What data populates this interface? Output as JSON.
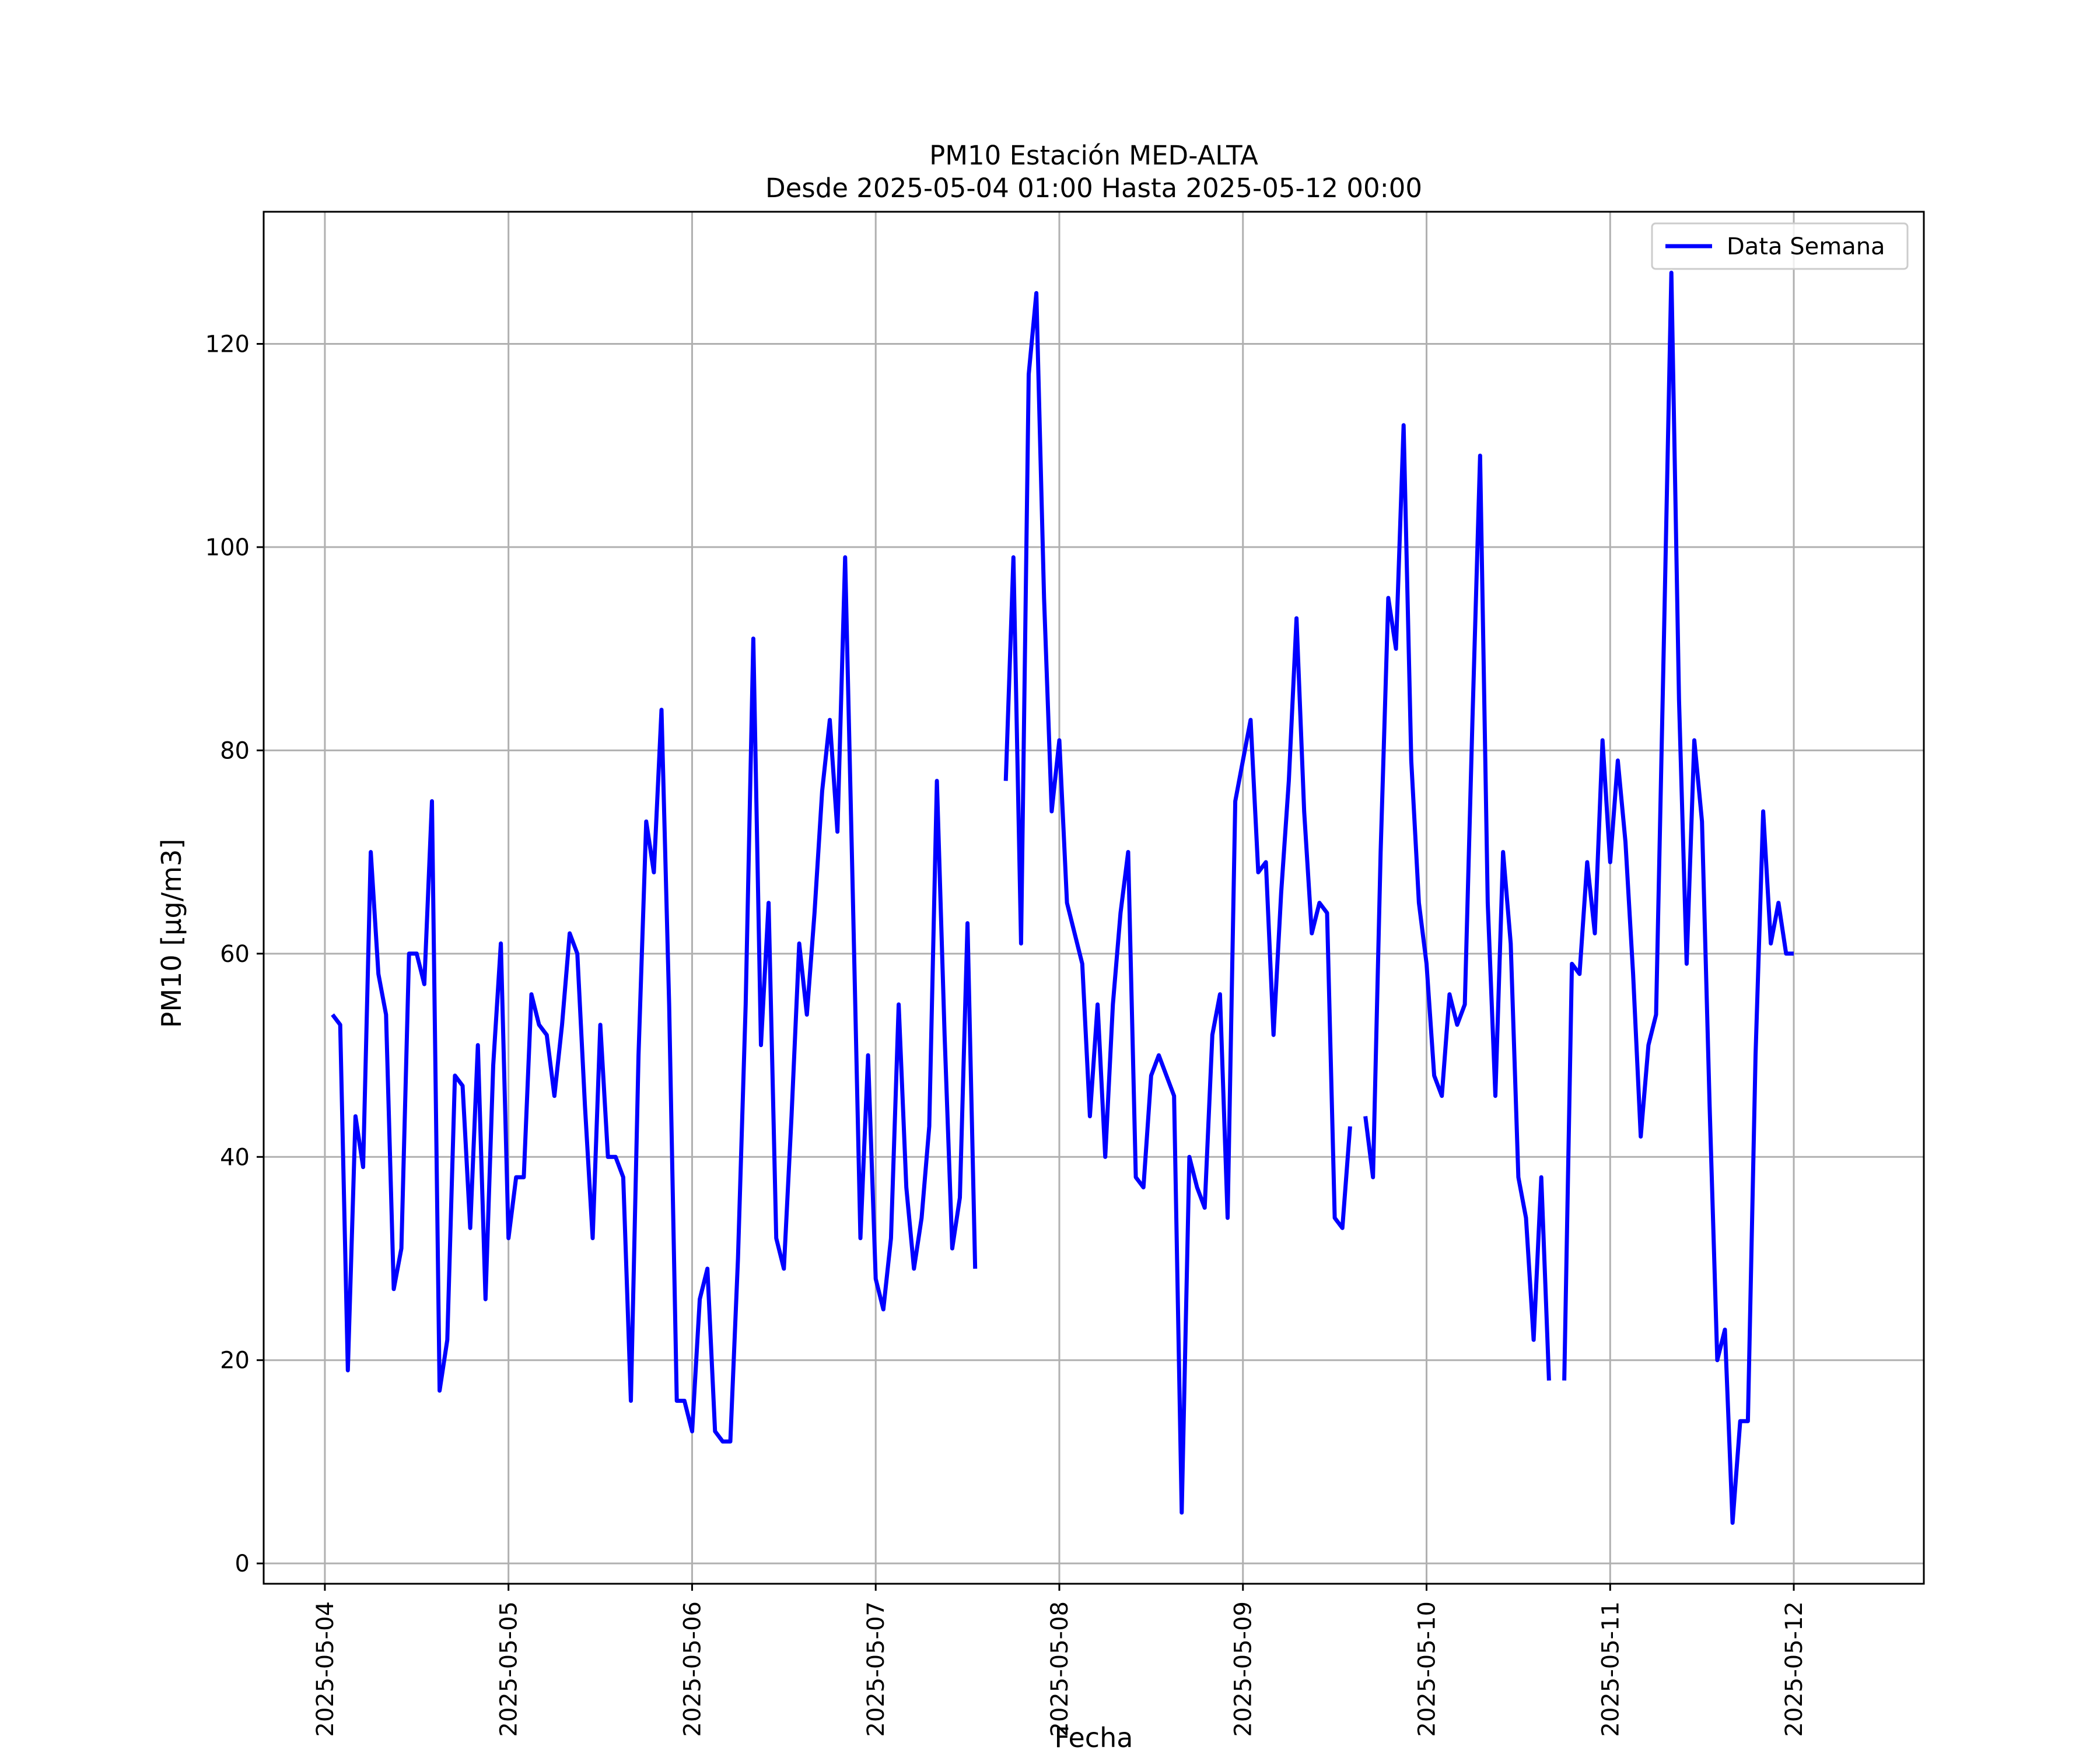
{
  "chart_data": {
    "type": "line",
    "title_line1": "PM10 Estación MED-ALTA",
    "title_line2": "Desde 2025-05-04 01:00 Hasta 2025-05-12 00:00",
    "xlabel": "Fecha",
    "ylabel": "PM10 [μg/m3]",
    "x_ticks": [
      "2025-05-04",
      "2025-05-05",
      "2025-05-06",
      "2025-05-07",
      "2025-05-08",
      "2025-05-09",
      "2025-05-10",
      "2025-05-11",
      "2025-05-12"
    ],
    "y_ticks": [
      0,
      20,
      40,
      60,
      80,
      100,
      120
    ],
    "xlim": [
      "2025-05-03T16:00",
      "2025-05-12T17:00"
    ],
    "ylim": [
      -2,
      133
    ],
    "grid": true,
    "legend_position": "top-right",
    "colors": {
      "series": "#0000ff",
      "grid": "#b0b0b0"
    },
    "series": [
      {
        "name": "Data Semana",
        "color": "#0000ff",
        "points": [
          [
            "2025-05-04T01:00",
            54
          ],
          [
            "2025-05-04T02:00",
            53
          ],
          [
            "2025-05-04T03:00",
            19
          ],
          [
            "2025-05-04T04:00",
            44
          ],
          [
            "2025-05-04T05:00",
            39
          ],
          [
            "2025-05-04T06:00",
            70
          ],
          [
            "2025-05-04T07:00",
            58
          ],
          [
            "2025-05-04T08:00",
            54
          ],
          [
            "2025-05-04T09:00",
            27
          ],
          [
            "2025-05-04T10:00",
            31
          ],
          [
            "2025-05-04T11:00",
            60
          ],
          [
            "2025-05-04T12:00",
            60
          ],
          [
            "2025-05-04T13:00",
            57
          ],
          [
            "2025-05-04T14:00",
            75
          ],
          [
            "2025-05-04T15:00",
            17
          ],
          [
            "2025-05-04T16:00",
            22
          ],
          [
            "2025-05-04T17:00",
            48
          ],
          [
            "2025-05-04T18:00",
            47
          ],
          [
            "2025-05-04T19:00",
            33
          ],
          [
            "2025-05-04T20:00",
            51
          ],
          [
            "2025-05-04T21:00",
            26
          ],
          [
            "2025-05-04T22:00",
            49
          ],
          [
            "2025-05-04T23:00",
            61
          ],
          [
            "2025-05-05T00:00",
            32
          ],
          [
            "2025-05-05T01:00",
            38
          ],
          [
            "2025-05-05T02:00",
            38
          ],
          [
            "2025-05-05T03:00",
            56
          ],
          [
            "2025-05-05T04:00",
            53
          ],
          [
            "2025-05-05T05:00",
            52
          ],
          [
            "2025-05-05T06:00",
            46
          ],
          [
            "2025-05-05T07:00",
            53
          ],
          [
            "2025-05-05T08:00",
            62
          ],
          [
            "2025-05-05T09:00",
            60
          ],
          [
            "2025-05-05T10:00",
            45
          ],
          [
            "2025-05-05T11:00",
            32
          ],
          [
            "2025-05-05T12:00",
            53
          ],
          [
            "2025-05-05T13:00",
            40
          ],
          [
            "2025-05-05T14:00",
            40
          ],
          [
            "2025-05-05T15:00",
            38
          ],
          [
            "2025-05-05T16:00",
            16
          ],
          [
            "2025-05-05T17:00",
            50
          ],
          [
            "2025-05-05T18:00",
            73
          ],
          [
            "2025-05-05T19:00",
            68
          ],
          [
            "2025-05-05T20:00",
            84
          ],
          [
            "2025-05-05T21:00",
            55
          ],
          [
            "2025-05-05T22:00",
            16
          ],
          [
            "2025-05-05T23:00",
            16
          ],
          [
            "2025-05-06T00:00",
            13
          ],
          [
            "2025-05-06T01:00",
            26
          ],
          [
            "2025-05-06T02:00",
            29
          ],
          [
            "2025-05-06T03:00",
            13
          ],
          [
            "2025-05-06T04:00",
            12
          ],
          [
            "2025-05-06T05:00",
            12
          ],
          [
            "2025-05-06T06:00",
            30
          ],
          [
            "2025-05-06T07:00",
            55
          ],
          [
            "2025-05-06T08:00",
            91
          ],
          [
            "2025-05-06T09:00",
            51
          ],
          [
            "2025-05-06T10:00",
            65
          ],
          [
            "2025-05-06T11:00",
            32
          ],
          [
            "2025-05-06T12:00",
            29
          ],
          [
            "2025-05-06T13:00",
            44
          ],
          [
            "2025-05-06T14:00",
            61
          ],
          [
            "2025-05-06T15:00",
            54
          ],
          [
            "2025-05-06T16:00",
            64
          ],
          [
            "2025-05-06T17:00",
            76
          ],
          [
            "2025-05-06T18:00",
            83
          ],
          [
            "2025-05-06T19:00",
            72
          ],
          [
            "2025-05-06T20:00",
            99
          ],
          [
            "2025-05-06T21:00",
            66
          ],
          [
            "2025-05-06T22:00",
            32
          ],
          [
            "2025-05-06T23:00",
            50
          ],
          [
            "2025-05-07T00:00",
            28
          ],
          [
            "2025-05-07T01:00",
            25
          ],
          [
            "2025-05-07T02:00",
            32
          ],
          [
            "2025-05-07T03:00",
            55
          ],
          [
            "2025-05-07T04:00",
            37
          ],
          [
            "2025-05-07T05:00",
            29
          ],
          [
            "2025-05-07T06:00",
            34
          ],
          [
            "2025-05-07T07:00",
            43
          ],
          [
            "2025-05-07T08:00",
            77
          ],
          [
            "2025-05-07T09:00",
            52
          ],
          [
            "2025-05-07T10:00",
            31
          ],
          [
            "2025-05-07T11:00",
            36
          ],
          [
            "2025-05-07T12:00",
            63
          ],
          [
            "2025-05-07T13:00",
            29
          ],
          [
            "2025-05-07T17:00",
            77
          ],
          [
            "2025-05-07T18:00",
            99
          ],
          [
            "2025-05-07T19:00",
            61
          ],
          [
            "2025-05-07T20:00",
            117
          ],
          [
            "2025-05-07T21:00",
            125
          ],
          [
            "2025-05-07T22:00",
            95
          ],
          [
            "2025-05-07T23:00",
            74
          ],
          [
            "2025-05-08T00:00",
            81
          ],
          [
            "2025-05-08T01:00",
            65
          ],
          [
            "2025-05-08T02:00",
            62
          ],
          [
            "2025-05-08T03:00",
            59
          ],
          [
            "2025-05-08T04:00",
            44
          ],
          [
            "2025-05-08T05:00",
            55
          ],
          [
            "2025-05-08T06:00",
            40
          ],
          [
            "2025-05-08T07:00",
            55
          ],
          [
            "2025-05-08T08:00",
            64
          ],
          [
            "2025-05-08T09:00",
            70
          ],
          [
            "2025-05-08T10:00",
            38
          ],
          [
            "2025-05-08T11:00",
            37
          ],
          [
            "2025-05-08T12:00",
            48
          ],
          [
            "2025-05-08T13:00",
            50
          ],
          [
            "2025-05-08T14:00",
            48
          ],
          [
            "2025-05-08T15:00",
            46
          ],
          [
            "2025-05-08T16:00",
            5
          ],
          [
            "2025-05-08T17:00",
            40
          ],
          [
            "2025-05-08T18:00",
            37
          ],
          [
            "2025-05-08T19:00",
            35
          ],
          [
            "2025-05-08T20:00",
            52
          ],
          [
            "2025-05-08T21:00",
            56
          ],
          [
            "2025-05-08T22:00",
            34
          ],
          [
            "2025-05-08T23:00",
            75
          ],
          [
            "2025-05-09T00:00",
            79
          ],
          [
            "2025-05-09T01:00",
            83
          ],
          [
            "2025-05-09T02:00",
            68
          ],
          [
            "2025-05-09T03:00",
            69
          ],
          [
            "2025-05-09T04:00",
            52
          ],
          [
            "2025-05-09T05:00",
            66
          ],
          [
            "2025-05-09T06:00",
            77
          ],
          [
            "2025-05-09T07:00",
            93
          ],
          [
            "2025-05-09T08:00",
            74
          ],
          [
            "2025-05-09T09:00",
            62
          ],
          [
            "2025-05-09T10:00",
            65
          ],
          [
            "2025-05-09T11:00",
            64
          ],
          [
            "2025-05-09T12:00",
            34
          ],
          [
            "2025-05-09T13:00",
            33
          ],
          [
            "2025-05-09T14:00",
            43
          ],
          [
            "2025-05-09T16:00",
            44
          ],
          [
            "2025-05-09T17:00",
            38
          ],
          [
            "2025-05-09T18:00",
            70
          ],
          [
            "2025-05-09T19:00",
            95
          ],
          [
            "2025-05-09T20:00",
            90
          ],
          [
            "2025-05-09T21:00",
            112
          ],
          [
            "2025-05-09T22:00",
            79
          ],
          [
            "2025-05-09T23:00",
            65
          ],
          [
            "2025-05-10T00:00",
            59
          ],
          [
            "2025-05-10T01:00",
            48
          ],
          [
            "2025-05-10T02:00",
            46
          ],
          [
            "2025-05-10T03:00",
            56
          ],
          [
            "2025-05-10T04:00",
            53
          ],
          [
            "2025-05-10T05:00",
            55
          ],
          [
            "2025-05-10T06:00",
            83
          ],
          [
            "2025-05-10T07:00",
            109
          ],
          [
            "2025-05-10T08:00",
            65
          ],
          [
            "2025-05-10T09:00",
            46
          ],
          [
            "2025-05-10T10:00",
            70
          ],
          [
            "2025-05-10T11:00",
            61
          ],
          [
            "2025-05-10T12:00",
            38
          ],
          [
            "2025-05-10T13:00",
            34
          ],
          [
            "2025-05-10T14:00",
            22
          ],
          [
            "2025-05-10T15:00",
            38
          ],
          [
            "2025-05-10T16:00",
            18
          ],
          [
            "2025-05-10T18:00",
            18
          ],
          [
            "2025-05-10T19:00",
            59
          ],
          [
            "2025-05-10T20:00",
            58
          ],
          [
            "2025-05-10T21:00",
            69
          ],
          [
            "2025-05-10T22:00",
            62
          ],
          [
            "2025-05-10T23:00",
            81
          ],
          [
            "2025-05-11T00:00",
            69
          ],
          [
            "2025-05-11T01:00",
            79
          ],
          [
            "2025-05-11T02:00",
            71
          ],
          [
            "2025-05-11T03:00",
            58
          ],
          [
            "2025-05-11T04:00",
            42
          ],
          [
            "2025-05-11T05:00",
            51
          ],
          [
            "2025-05-11T06:00",
            54
          ],
          [
            "2025-05-11T07:00",
            90
          ],
          [
            "2025-05-11T08:00",
            127
          ],
          [
            "2025-05-11T09:00",
            85
          ],
          [
            "2025-05-11T10:00",
            59
          ],
          [
            "2025-05-11T11:00",
            81
          ],
          [
            "2025-05-11T12:00",
            73
          ],
          [
            "2025-05-11T13:00",
            45
          ],
          [
            "2025-05-11T14:00",
            20
          ],
          [
            "2025-05-11T15:00",
            23
          ],
          [
            "2025-05-11T16:00",
            4
          ],
          [
            "2025-05-11T17:00",
            14
          ],
          [
            "2025-05-11T18:00",
            14
          ],
          [
            "2025-05-11T19:00",
            50
          ],
          [
            "2025-05-11T20:00",
            74
          ],
          [
            "2025-05-11T21:00",
            61
          ],
          [
            "2025-05-11T22:00",
            65
          ],
          [
            "2025-05-11T23:00",
            60
          ],
          [
            "2025-05-12T00:00",
            60
          ]
        ]
      }
    ]
  }
}
